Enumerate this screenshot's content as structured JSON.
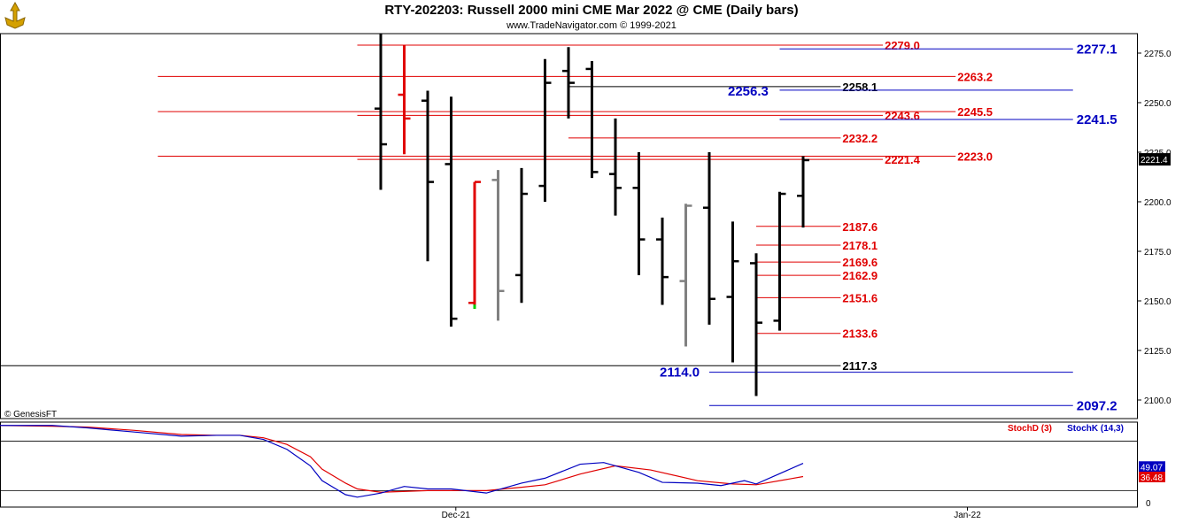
{
  "header": {
    "title": "RTY-202203:  Russell 2000 mini CME Mar 2022 @ CME  (Daily bars)",
    "subtitle": "www.TradeNavigator.com © 1999-2021",
    "watermark": "© GenesisFT",
    "logo_icon": "tradenavigator-logo-icon"
  },
  "colors": {
    "up": "#000000",
    "down_red": "#e00000",
    "inside_gray": "#808080",
    "green": "#00d000",
    "red_level": "#e00000",
    "blue_level": "#0000c0",
    "stochD": "#e00000",
    "stochK": "#0000c0",
    "current_bg": "#000000"
  },
  "chart_data": [
    {
      "type": "ohlc",
      "title": "RTY-202203:  Russell 2000 mini CME Mar 2022 @ CME  (Daily bars)",
      "ylim": [
        2088,
        2285
      ],
      "y_ticks": [
        "2100.0",
        "2125.0",
        "2150.0",
        "2175.0",
        "2200.0",
        "2225.0",
        "2250.0",
        "2275.0"
      ],
      "x_ticks": [
        {
          "label": "Dec-21",
          "index": 3.2
        },
        {
          "label": "Jan-22",
          "index": 25
        }
      ],
      "current_price_label": "2221.4",
      "bars": [
        {
          "o": 2247,
          "h": 2285,
          "l": 2206,
          "c": 2229,
          "color": "black"
        },
        {
          "o": 2254,
          "h": 2279,
          "l": 2224,
          "c": 2242,
          "color": "red"
        },
        {
          "o": 2251,
          "h": 2256,
          "l": 2170,
          "c": 2210,
          "color": "black"
        },
        {
          "o": 2219,
          "h": 2253,
          "l": 2137,
          "c": 2141,
          "color": "black"
        },
        {
          "o": 2149,
          "h": 2210,
          "l": 2146,
          "c": 2210,
          "color": "red"
        },
        {
          "o": 2211,
          "h": 2216,
          "l": 2140,
          "c": 2155,
          "color": "gray"
        },
        {
          "o": 2163,
          "h": 2217,
          "l": 2149,
          "c": 2204,
          "color": "black"
        },
        {
          "o": 2208,
          "h": 2272,
          "l": 2200,
          "c": 2260,
          "color": "black"
        },
        {
          "o": 2266,
          "h": 2278,
          "l": 2242,
          "c": 2260,
          "color": "black"
        },
        {
          "o": 2267,
          "h": 2271,
          "l": 2212,
          "c": 2215,
          "color": "black"
        },
        {
          "o": 2214,
          "h": 2242,
          "l": 2193,
          "c": 2207,
          "color": "black"
        },
        {
          "o": 2207,
          "h": 2225,
          "l": 2163,
          "c": 2181,
          "color": "black"
        },
        {
          "o": 2181,
          "h": 2192,
          "l": 2148,
          "c": 2162,
          "color": "black"
        },
        {
          "o": 2160,
          "h": 2199,
          "l": 2127,
          "c": 2198,
          "color": "gray"
        },
        {
          "o": 2197,
          "h": 2225,
          "l": 2138,
          "c": 2151,
          "color": "black"
        },
        {
          "o": 2152,
          "h": 2190,
          "l": 2119,
          "c": 2170,
          "color": "black"
        },
        {
          "o": 2169,
          "h": 2174,
          "l": 2102,
          "c": 2139,
          "color": "black"
        },
        {
          "o": 2140,
          "h": 2205,
          "l": 2135,
          "c": 2204,
          "color": "black"
        },
        {
          "o": 2203,
          "h": 2223,
          "l": 2187,
          "c": 2221,
          "color": "black"
        }
      ],
      "levels": [
        {
          "label": "2279.0",
          "value": 2279.0,
          "color": "red",
          "start": -1.0,
          "end": 21.4
        },
        {
          "label": "2277.1",
          "value": 2277.1,
          "color": "blue",
          "start": 17.0,
          "end": 29.5
        },
        {
          "label": "2263.2",
          "value": 2263.2,
          "color": "red",
          "start": -9.5,
          "end": 24.5
        },
        {
          "label": "2258.1",
          "value": 2258.1,
          "color": "black",
          "start": 8.0,
          "end": 19.6
        },
        {
          "label": "2256.3",
          "value": 2256.3,
          "color": "blue",
          "start": 17.0,
          "end": 29.5
        },
        {
          "label": "2245.5",
          "value": 2245.5,
          "color": "red",
          "start": -9.5,
          "end": 24.5
        },
        {
          "label": "2243.6",
          "value": 2243.6,
          "color": "red",
          "start": -1.0,
          "end": 21.4
        },
        {
          "label": "2241.5",
          "value": 2241.5,
          "color": "blue",
          "start": 17.0,
          "end": 29.5
        },
        {
          "label": "2232.2",
          "value": 2232.2,
          "color": "red",
          "start": 8.0,
          "end": 19.6
        },
        {
          "label": "2223.0",
          "value": 2223.0,
          "color": "red",
          "start": -9.5,
          "end": 24.5
        },
        {
          "label": "2221.4",
          "value": 2221.4,
          "color": "red",
          "start": -1.0,
          "end": 21.4
        },
        {
          "label": "2187.6",
          "value": 2187.6,
          "color": "red",
          "start": 16.0,
          "end": 19.6
        },
        {
          "label": "2178.1",
          "value": 2178.1,
          "color": "red",
          "start": 16.0,
          "end": 19.6
        },
        {
          "label": "2169.6",
          "value": 2169.6,
          "color": "red",
          "start": 16.0,
          "end": 19.6
        },
        {
          "label": "2162.9",
          "value": 2162.9,
          "color": "red",
          "start": 16.0,
          "end": 19.6
        },
        {
          "label": "2151.6",
          "value": 2151.6,
          "color": "red",
          "start": 16.0,
          "end": 19.6
        },
        {
          "label": "2133.6",
          "value": 2133.6,
          "color": "red",
          "start": 16.0,
          "end": 19.6
        },
        {
          "label": "2117.3",
          "value": 2117.3,
          "color": "black",
          "start": -16.5,
          "end": 19.6
        },
        {
          "label": "2114.0",
          "value": 2114.0,
          "color": "blue",
          "start": 14.0,
          "end": 29.5
        },
        {
          "label": "2097.2",
          "value": 2097.2,
          "color": "blue",
          "start": 14.0,
          "end": 29.5
        }
      ]
    },
    {
      "type": "line",
      "title": "",
      "ylim": [
        0,
        100
      ],
      "y_ticks": [
        "0"
      ],
      "ref_lines": [
        20,
        80
      ],
      "series": [
        {
          "name": "StochD (3)",
          "color": "red",
          "values": [
            [
              -16.5,
              99
            ],
            [
              -14,
              98
            ],
            [
              -12.5,
              97
            ],
            [
              -10.5,
              93
            ],
            [
              -8.5,
              88
            ],
            [
              -7,
              87
            ],
            [
              -6,
              87
            ],
            [
              -5,
              84
            ],
            [
              -4,
              76
            ],
            [
              -3,
              61
            ],
            [
              -2.5,
              46
            ],
            [
              -1.5,
              29
            ],
            [
              -1,
              22
            ],
            [
              0,
              18
            ],
            [
              2,
              20
            ],
            [
              3,
              20
            ],
            [
              4.5,
              20
            ],
            [
              6,
              24
            ],
            [
              7,
              27
            ],
            [
              8.5,
              40
            ],
            [
              10,
              50
            ],
            [
              11.5,
              45
            ],
            [
              13.5,
              32
            ],
            [
              15,
              28
            ],
            [
              16,
              27
            ],
            [
              18,
              37
            ]
          ]
        },
        {
          "name": "StochK (14,3)",
          "color": "blue",
          "values": [
            [
              -16.5,
              99
            ],
            [
              -14,
              99
            ],
            [
              -12.5,
              96
            ],
            [
              -10.5,
              91
            ],
            [
              -8.5,
              86
            ],
            [
              -7,
              87
            ],
            [
              -6,
              87
            ],
            [
              -5,
              82
            ],
            [
              -4,
              70
            ],
            [
              -3,
              50
            ],
            [
              -2.5,
              32
            ],
            [
              -1.5,
              15
            ],
            [
              -1,
              12
            ],
            [
              0,
              17
            ],
            [
              1,
              25
            ],
            [
              2,
              22
            ],
            [
              3,
              22
            ],
            [
              4.5,
              17
            ],
            [
              6,
              29
            ],
            [
              7,
              35
            ],
            [
              8.5,
              52
            ],
            [
              9.5,
              54
            ],
            [
              11,
              42
            ],
            [
              12,
              30
            ],
            [
              13.5,
              29
            ],
            [
              14.5,
              26
            ],
            [
              15.5,
              32
            ],
            [
              16,
              28
            ],
            [
              18,
              53
            ]
          ]
        }
      ],
      "value_labels": [
        {
          "label": "49.07",
          "value": 49.07,
          "color": "blue"
        },
        {
          "label": "36.48",
          "value": 36.48,
          "color": "red"
        }
      ],
      "legend": [
        "StochD (3)",
        "StochK (14,3)"
      ]
    }
  ]
}
